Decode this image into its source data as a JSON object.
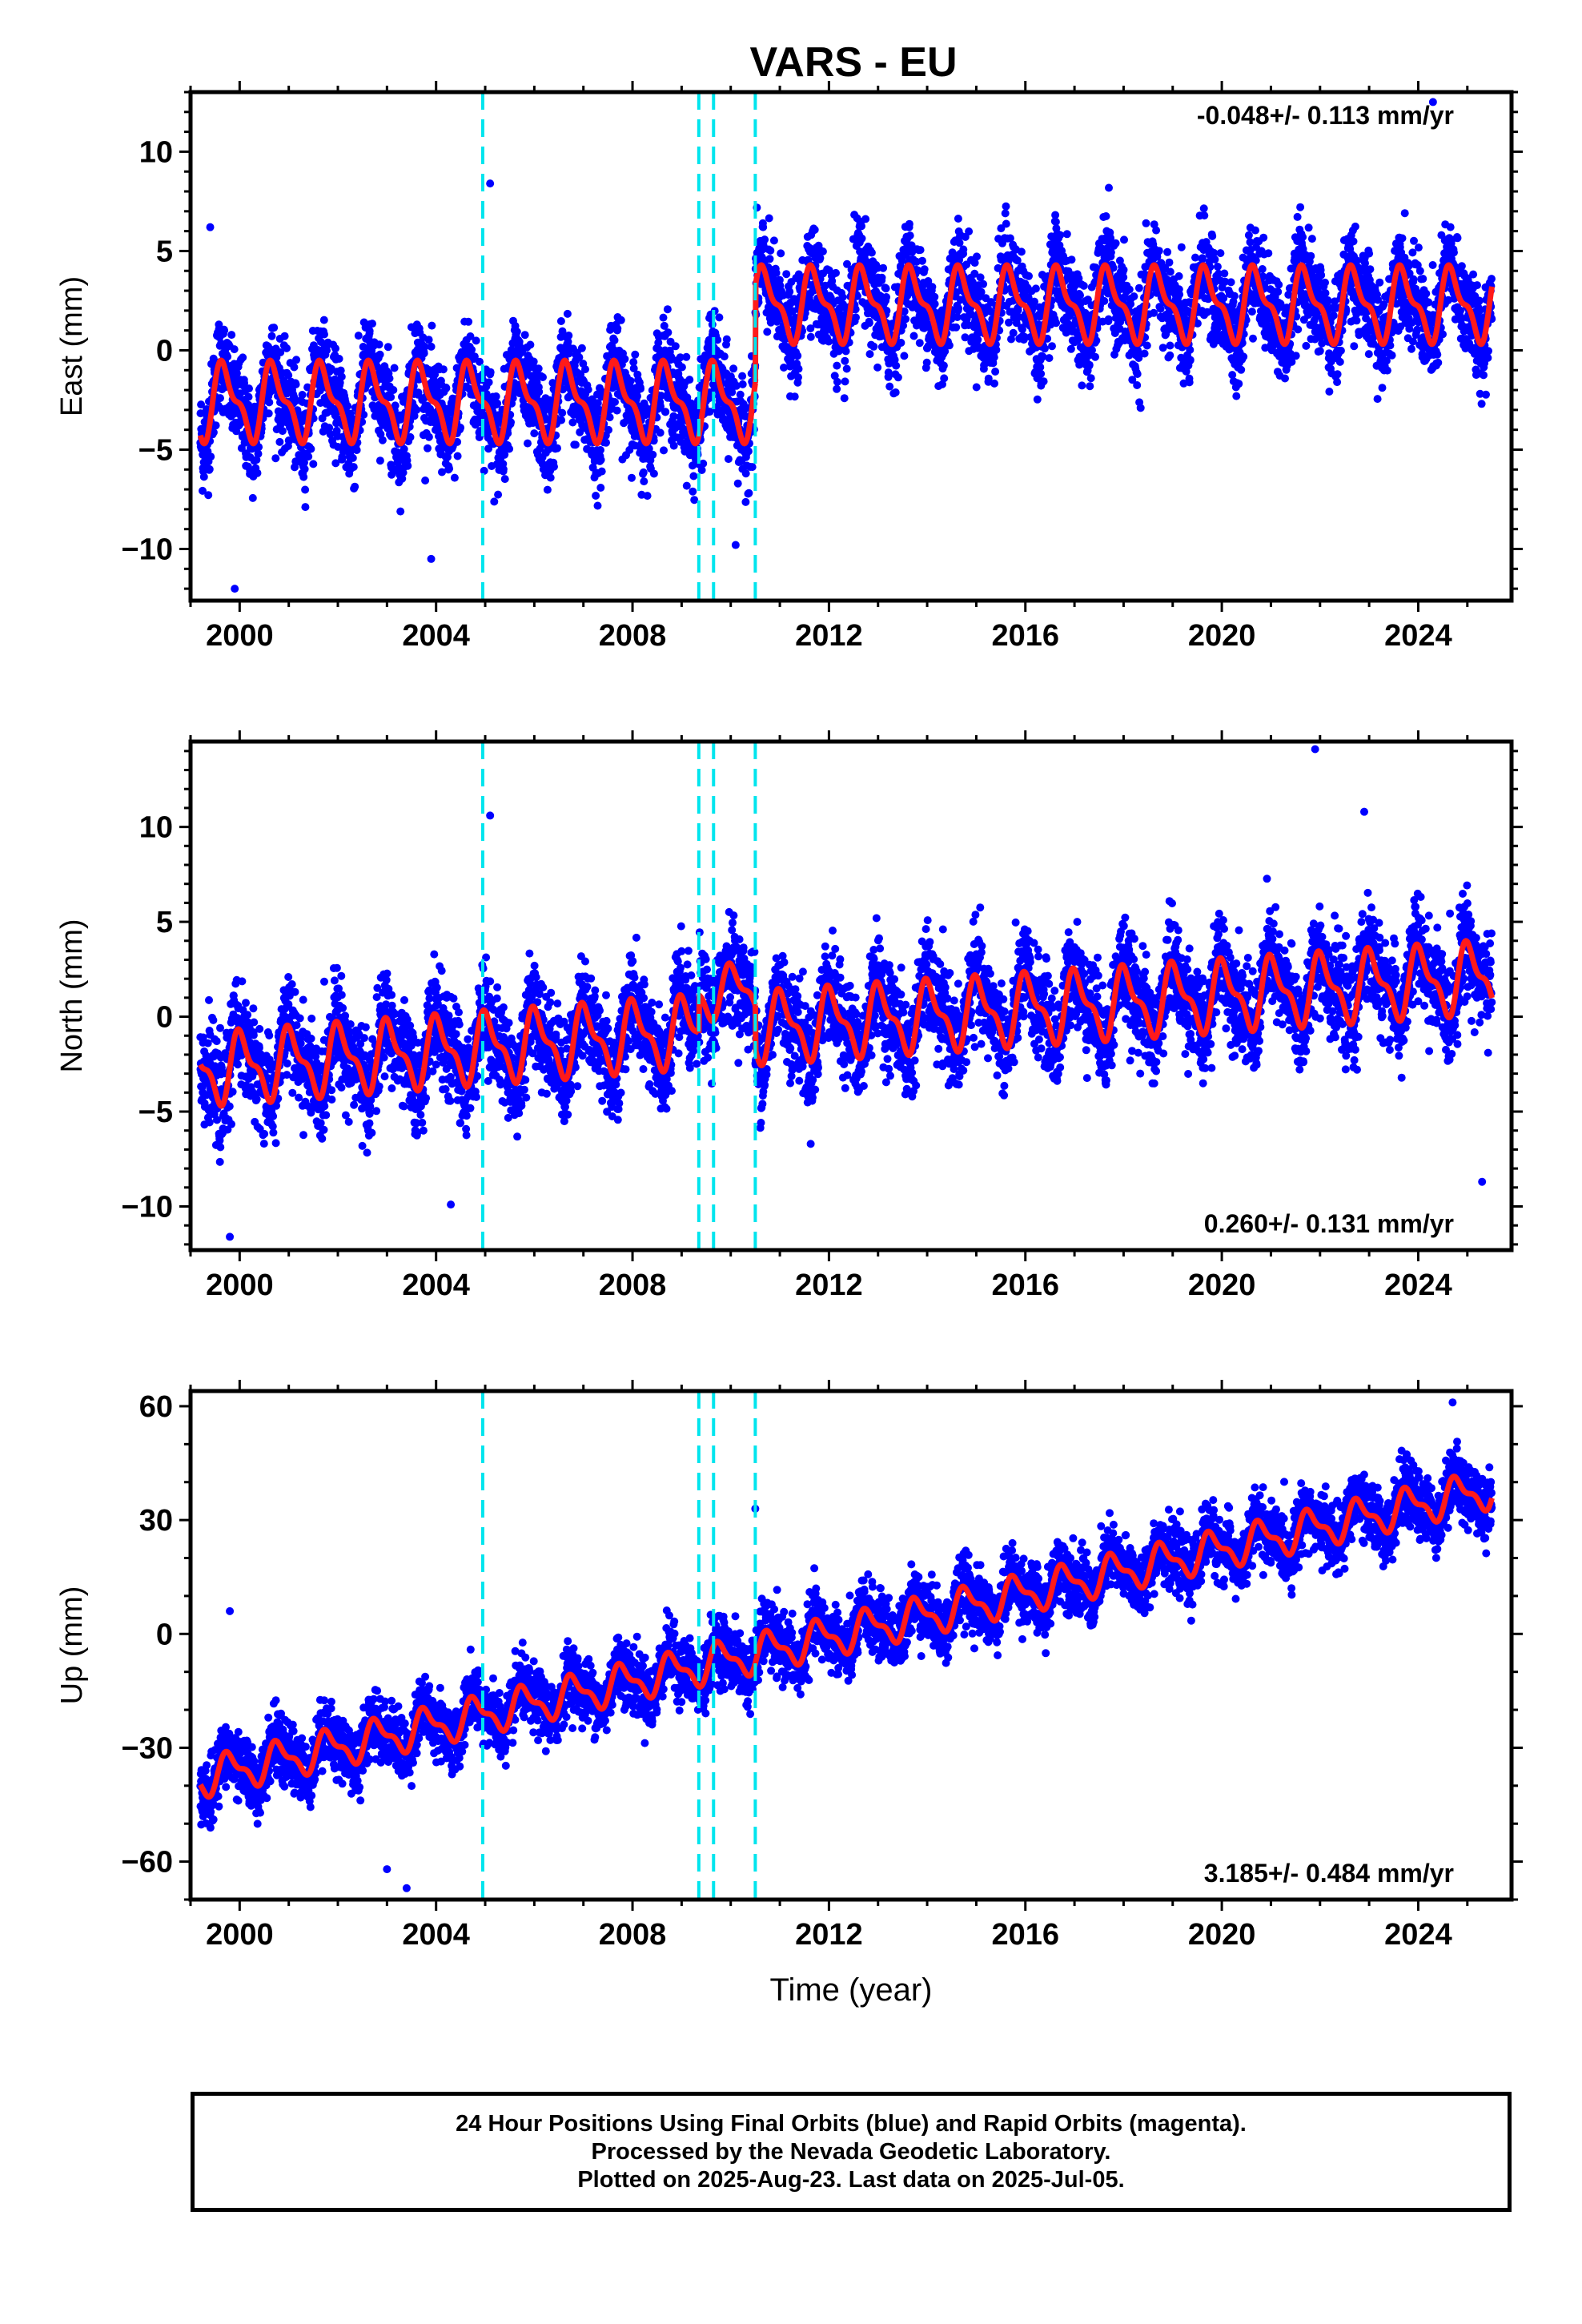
{
  "title": "VARS - EU",
  "footer": {
    "line1": "24 Hour Positions Using Final Orbits (blue) and Rapid Orbits (magenta).",
    "line2": "Processed by the Nevada Geodetic Laboratory.",
    "line3": "Plotted on 2025-Aug-23. Last data on 2025-Jul-05."
  },
  "colors": {
    "data_points": "#0000ff",
    "model_fit": "#ff1a1a",
    "break_lines": "#00e5ee",
    "frame": "#000000"
  },
  "chart_data": [
    {
      "type": "scatter",
      "component": "east",
      "ylabel": "East (mm)",
      "xlabel": "",
      "xlim": [
        1999.0,
        2025.9
      ],
      "ylim": [
        -12.6,
        13.0
      ],
      "xticks": [
        2000,
        2004,
        2008,
        2012,
        2016,
        2020,
        2024
      ],
      "yticks": [
        -10,
        -5,
        0,
        5,
        10
      ],
      "ytick_labels": [
        "−10",
        "−5",
        "0",
        "5",
        "10"
      ],
      "velocity_text": "-0.048+/- 0.113 mm/yr",
      "velocity_position": "top-right",
      "break_epochs": [
        2004.95,
        2009.35,
        2009.65,
        2010.5
      ],
      "data_start": 1999.2,
      "data_end": 2025.5,
      "outliers": [
        [
          1999.9,
          -12.0
        ],
        [
          1999.4,
          6.2
        ],
        [
          2005.1,
          8.4
        ],
        [
          2024.3,
          12.5
        ],
        [
          2003.9,
          -10.5
        ],
        [
          2010.1,
          -9.8
        ]
      ],
      "segments": [
        {
          "start": 1999.2,
          "end": 2010.5,
          "offset": -2.6,
          "trend": 0.0,
          "amplitude": 2.1,
          "phase": 0.45,
          "spread": 1.6
        },
        {
          "start": 2010.5,
          "end": 2025.5,
          "offset": 2.3,
          "trend": 0.0,
          "amplitude": 2.0,
          "phase": 0.45,
          "spread": 1.6
        }
      ]
    },
    {
      "type": "scatter",
      "component": "north",
      "ylabel": "North (mm)",
      "xlabel": "",
      "xlim": [
        1999.0,
        2025.9
      ],
      "ylim": [
        -12.3,
        14.5
      ],
      "xticks": [
        2000,
        2004,
        2008,
        2012,
        2016,
        2020,
        2024
      ],
      "yticks": [
        -10,
        -5,
        0,
        5,
        10
      ],
      "ytick_labels": [
        "−10",
        "−5",
        "0",
        "5",
        "10"
      ],
      "velocity_text": "0.260+/- 0.131 mm/yr",
      "velocity_position": "bottom-right",
      "break_epochs": [
        2004.95,
        2009.35,
        2009.65,
        2010.5
      ],
      "data_start": 1999.2,
      "data_end": 2025.5,
      "outliers": [
        [
          1999.8,
          -11.6
        ],
        [
          2005.1,
          10.6
        ],
        [
          2021.9,
          14.1
        ],
        [
          2025.3,
          -8.7
        ],
        [
          2004.3,
          -9.9
        ],
        [
          2022.9,
          10.8
        ]
      ],
      "segments": [
        {
          "start": 1999.2,
          "end": 2009.35,
          "offset": -2.8,
          "trend": 0.2,
          "amplitude": 2.0,
          "phase": 0.8,
          "spread": 1.7
        },
        {
          "start": 2009.35,
          "end": 2010.5,
          "offset": 1.2,
          "trend": 0.2,
          "amplitude": 1.5,
          "phase": 0.8,
          "spread": 1.7
        },
        {
          "start": 2010.5,
          "end": 2025.5,
          "offset": -0.6,
          "trend": 0.18,
          "amplitude": 2.0,
          "phase": 0.8,
          "spread": 1.7
        }
      ]
    },
    {
      "type": "scatter",
      "component": "up",
      "ylabel": "Up (mm)",
      "xlabel": "Time (year)",
      "xlim": [
        1999.0,
        2025.9
      ],
      "ylim": [
        -70,
        64
      ],
      "xticks": [
        2000,
        2004,
        2008,
        2012,
        2016,
        2020,
        2024
      ],
      "yticks": [
        -60,
        -30,
        0,
        30,
        60
      ],
      "ytick_labels": [
        "−60",
        "−30",
        "0",
        "30",
        "60"
      ],
      "velocity_text": "3.185+/- 0.484 mm/yr",
      "velocity_position": "bottom-right",
      "break_epochs": [
        2004.95,
        2009.35,
        2009.65,
        2010.5
      ],
      "data_start": 1999.2,
      "data_end": 2025.5,
      "outliers": [
        [
          1999.8,
          6.0
        ],
        [
          2003.4,
          -67.0
        ],
        [
          2024.7,
          61.0
        ],
        [
          2010.5,
          33.0
        ],
        [
          2003.0,
          -62.0
        ]
      ],
      "segments": [
        {
          "start": 1999.2,
          "end": 2025.5,
          "offset": -38.0,
          "trend": 2.9,
          "amplitude": 5.5,
          "phase": 0.55,
          "spread": 5.5
        }
      ]
    }
  ]
}
